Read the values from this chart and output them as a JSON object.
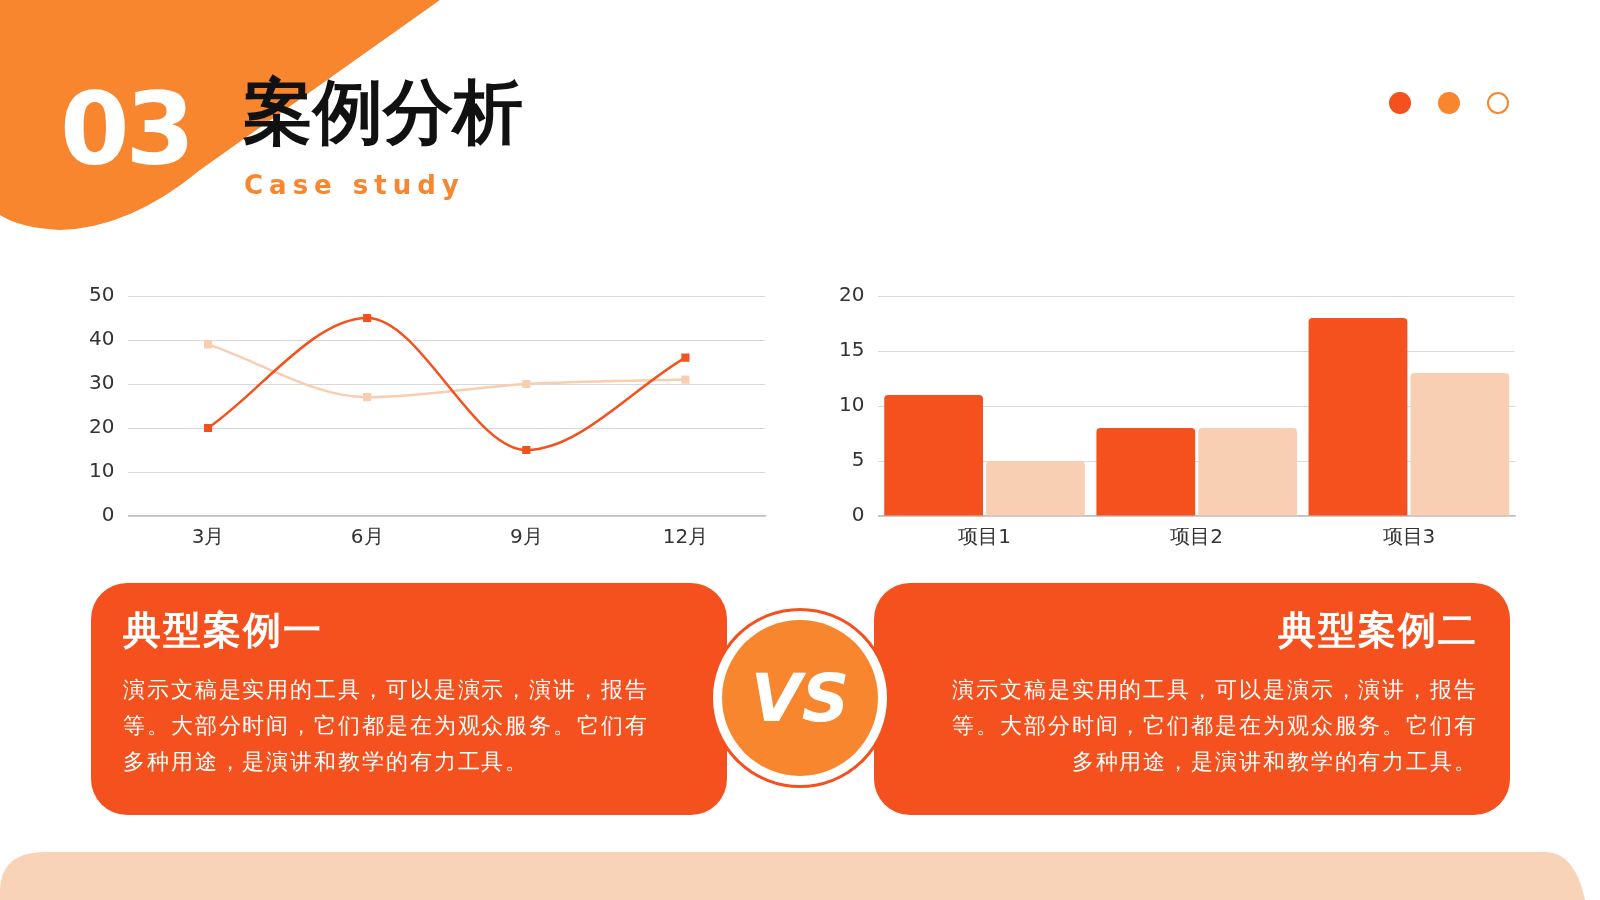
{
  "chart_data": [
    {
      "type": "other",
      "title": "案例分析",
      "subtitle": "Case study",
      "annotations": [
        "03"
      ]
    },
    {
      "type": "line",
      "categories": [
        "3月",
        "6月",
        "9月",
        "12月"
      ],
      "series": [
        {
          "color": "#f4511e",
          "values": [
            20,
            45,
            15,
            36
          ]
        },
        {
          "color": "#f9cdb0",
          "values": [
            39,
            27,
            30,
            31
          ]
        }
      ],
      "ylim": [
        0,
        50
      ],
      "yticks": [
        0,
        10,
        20,
        30,
        40,
        50
      ],
      "grid": "y",
      "marker": "square"
    },
    {
      "type": "bar",
      "categories": [
        "项目1",
        "项目2",
        "项目3"
      ],
      "series": [
        {
          "color": "#f4511e",
          "values": [
            11,
            8,
            18
          ]
        },
        {
          "color": "#f9cfb3",
          "values": [
            5,
            8,
            13
          ]
        }
      ],
      "ylim": [
        0,
        20
      ],
      "yticks": [
        0,
        5,
        10,
        15,
        20
      ],
      "grid": "y"
    },
    {
      "type": "other",
      "title": "典型案例一",
      "annotations": [
        "演示文稿是实用的工具，可以是演示，演讲，报告等。大部分时间，它们都是在为观众服务。它们有多种用途，是演讲和教学的有力工具。"
      ]
    },
    {
      "type": "other",
      "title": "VS"
    },
    {
      "type": "other",
      "title": "典型案例二",
      "annotations": [
        "演示文稿是实用的工具，可以是演示，演讲，报告等。大部分时间，它们都是在为观众服务。它们有多种用途，是演讲和教学的有力工具。"
      ]
    }
  ]
}
